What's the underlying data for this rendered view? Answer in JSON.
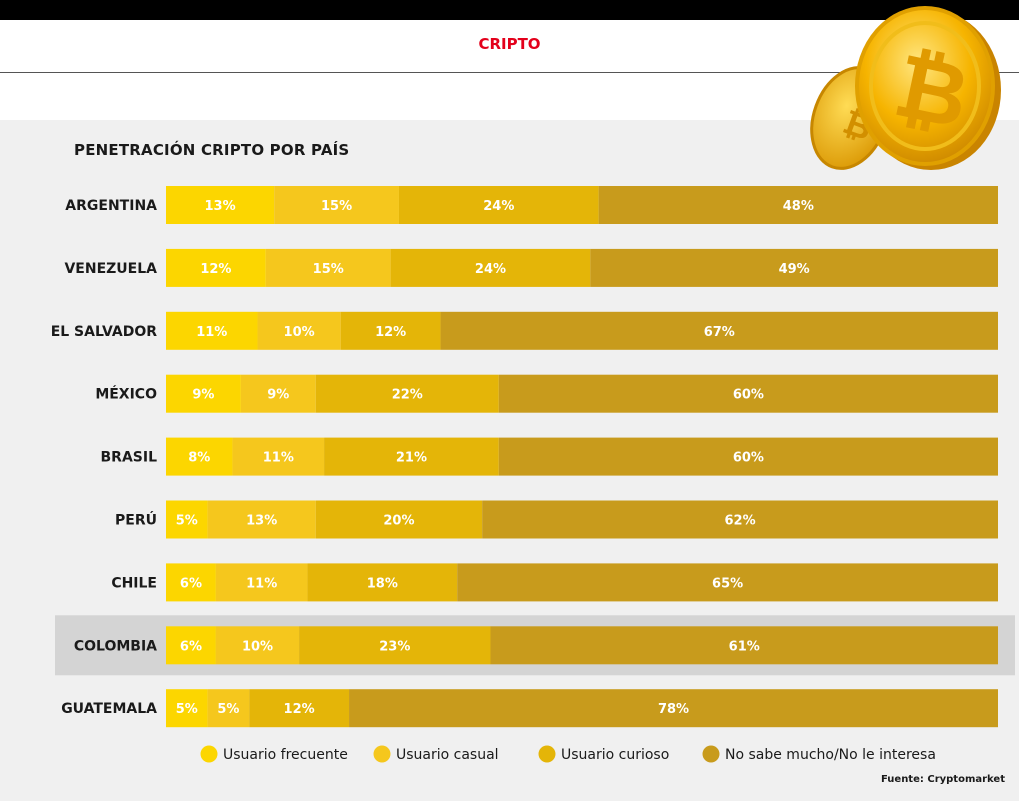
{
  "header": {
    "section_label": "CRIPTO"
  },
  "colors": {
    "frecuente": "#fcd600",
    "casual": "#f5c71d",
    "curioso": "#e4b508",
    "no_sabe": "#c89b1c",
    "highlight_row": "#d4d4d4",
    "accent": "#e3001b"
  },
  "icons": [
    "bitcoin-coin-icon"
  ],
  "chart_data": {
    "type": "bar",
    "orientation": "horizontal",
    "stacked": true,
    "title": "PENETRACIÓN CRIPTO POR PAÍS",
    "categories": [
      "ARGENTINA",
      "VENEZUELA",
      "EL SALVADOR",
      "MÉXICO",
      "BRASIL",
      "PERÚ",
      "CHILE",
      "COLOMBIA",
      "GUATEMALA"
    ],
    "highlighted_category": "COLOMBIA",
    "series": [
      {
        "name": "Usuario frecuente",
        "values": [
          13,
          12,
          11,
          9,
          8,
          5,
          6,
          6,
          5
        ]
      },
      {
        "name": "Usuario casual",
        "values": [
          15,
          15,
          10,
          9,
          11,
          13,
          11,
          10,
          5
        ]
      },
      {
        "name": "Usuario curioso",
        "values": [
          24,
          24,
          12,
          22,
          21,
          20,
          18,
          23,
          12
        ]
      },
      {
        "name": "No sabe mucho/No le interesa",
        "values": [
          48,
          49,
          67,
          60,
          60,
          62,
          65,
          61,
          78
        ]
      }
    ],
    "value_suffix": "%",
    "legend_position": "bottom",
    "source": "Fuente: Cryptomarket"
  }
}
